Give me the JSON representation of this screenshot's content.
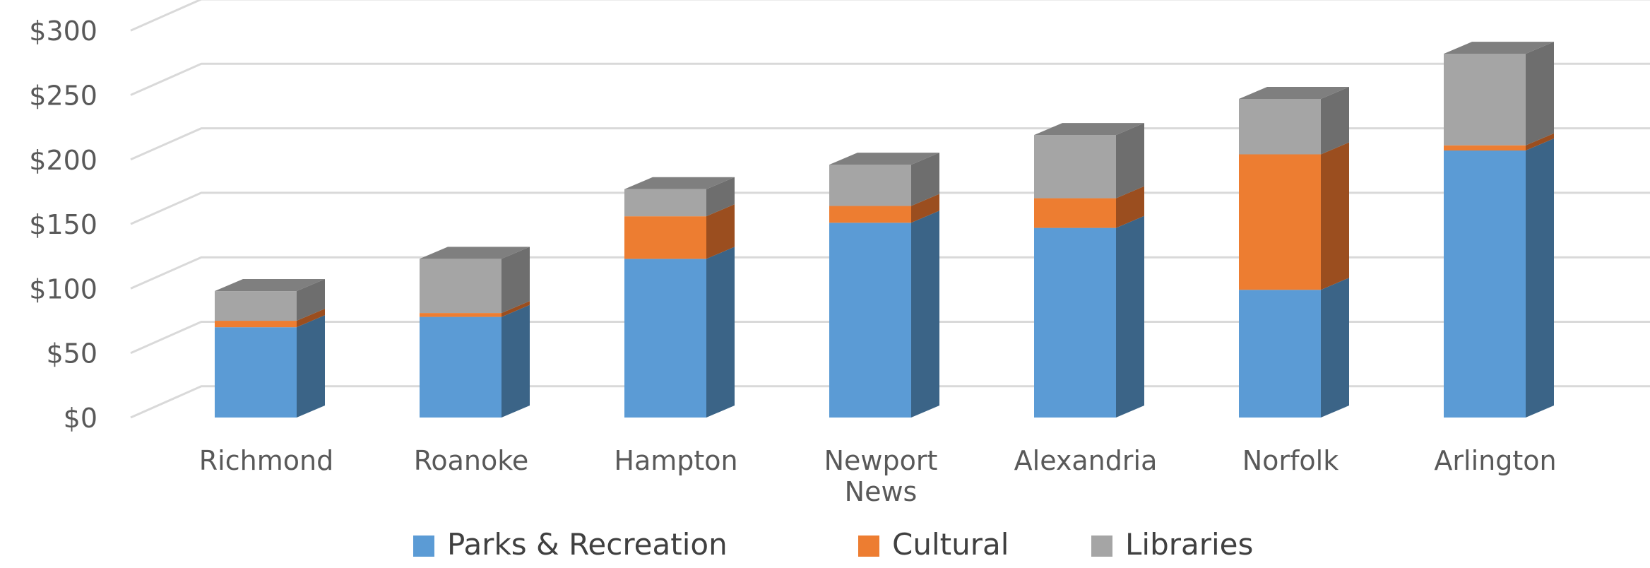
{
  "chart_data": {
    "type": "bar",
    "stacked": true,
    "style": "3d-column",
    "categories": [
      [
        "Richmond"
      ],
      [
        "Roanoke"
      ],
      [
        "Hampton"
      ],
      [
        "Newport",
        "News"
      ],
      [
        "Alexandria"
      ],
      [
        "Norfolk"
      ],
      [
        "Arlington"
      ]
    ],
    "series": [
      {
        "name": "Parks & Recreation",
        "color": "#5b9bd5",
        "side": "#3b6487",
        "values": [
          70,
          78,
          123,
          151,
          147,
          99,
          207
        ]
      },
      {
        "name": "Cultural",
        "color": "#ed7d31",
        "side": "#9b4e1f",
        "values": [
          5,
          3,
          33,
          13,
          23,
          105,
          4
        ]
      },
      {
        "name": "Libraries",
        "color": "#a5a5a5",
        "side": "#6e6e6e",
        "top": "#7f7f7f",
        "values": [
          23,
          42,
          21,
          32,
          49,
          43,
          71
        ]
      }
    ],
    "yticks": [
      "$0",
      "$50",
      "$100",
      "$150",
      "$200",
      "$250",
      "$300"
    ],
    "ylim": [
      0,
      300
    ],
    "grid": true,
    "legend": "bottom"
  }
}
